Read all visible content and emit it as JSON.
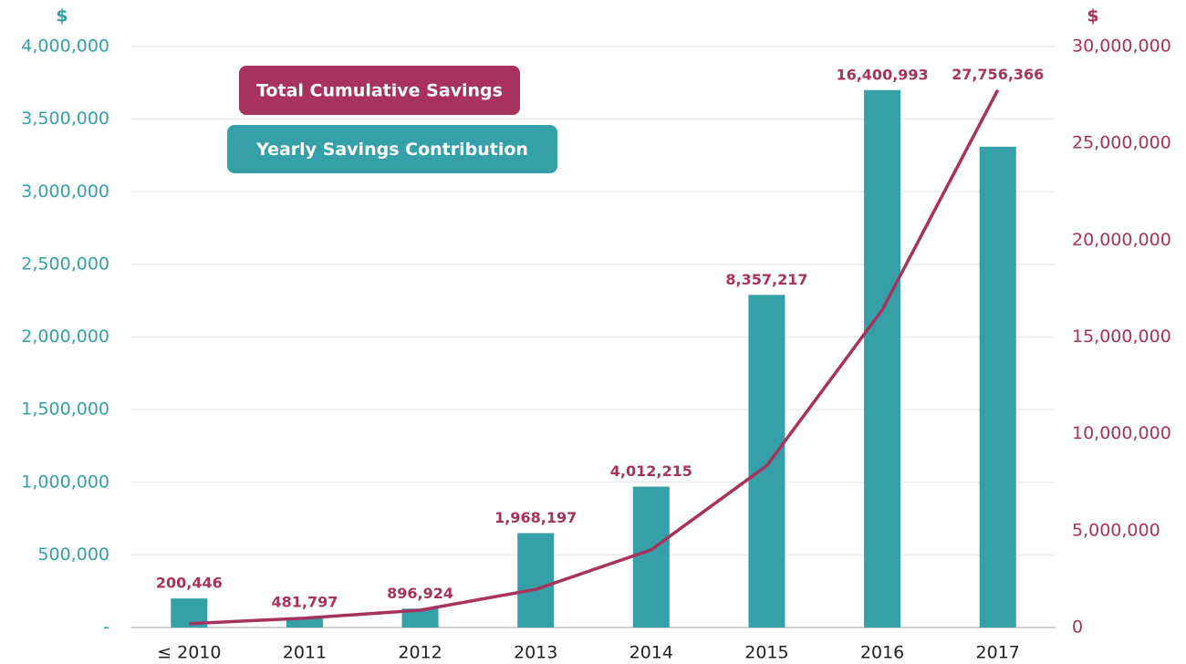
{
  "chart_data": {
    "type": "bar",
    "ylabel": "$",
    "y2label": "$",
    "categories": [
      "≤ 2010",
      "2011",
      "2012",
      "2013",
      "2014",
      "2015",
      "2016",
      "2017"
    ],
    "series": [
      {
        "name": "Yearly Savings Contribution",
        "color": "#36a0a8",
        "type": "bar",
        "values": [
          200000,
          70000,
          130000,
          650000,
          970000,
          2290000,
          3700000,
          3310000
        ]
      },
      {
        "name": "Total Cumulative Savings",
        "color": "#a8325e",
        "type": "line",
        "axis": "y2",
        "values": [
          200446,
          481797,
          896924,
          1968197,
          4012215,
          8357217,
          16400993,
          27756366
        ],
        "value_labels": [
          "200,446",
          "481,797",
          "896,924",
          "1,968,197",
          "4,012,215",
          "8,357,217",
          "16,400,993",
          "27,756,366"
        ]
      }
    ],
    "ylim": [
      0,
      4000000
    ],
    "yticks": [
      {
        "value": 0,
        "label": "-"
      },
      {
        "value": 500000,
        "label": "500,000"
      },
      {
        "value": 1000000,
        "label": "1,000,000"
      },
      {
        "value": 1500000,
        "label": "1,500,000"
      },
      {
        "value": 2000000,
        "label": "2,000,000"
      },
      {
        "value": 2500000,
        "label": "2,500,000"
      },
      {
        "value": 3000000,
        "label": "3,000,000"
      },
      {
        "value": 3500000,
        "label": "3,500,000"
      },
      {
        "value": 4000000,
        "label": "4,000,000"
      }
    ],
    "y2lim": [
      0,
      30000000
    ],
    "y2ticks": [
      0,
      {
        "value": 5000000,
        "label": "5,000,000"
      },
      {
        "value": 10000000,
        "label": "10,000,000"
      },
      {
        "value": 15000000,
        "label": "15,000,000"
      },
      {
        "value": 20000000,
        "label": "20,000,000"
      },
      {
        "value": 25000000,
        "label": "25,000,000"
      },
      {
        "value": 30000000,
        "label": "30,000,000"
      }
    ],
    "grid": true
  }
}
